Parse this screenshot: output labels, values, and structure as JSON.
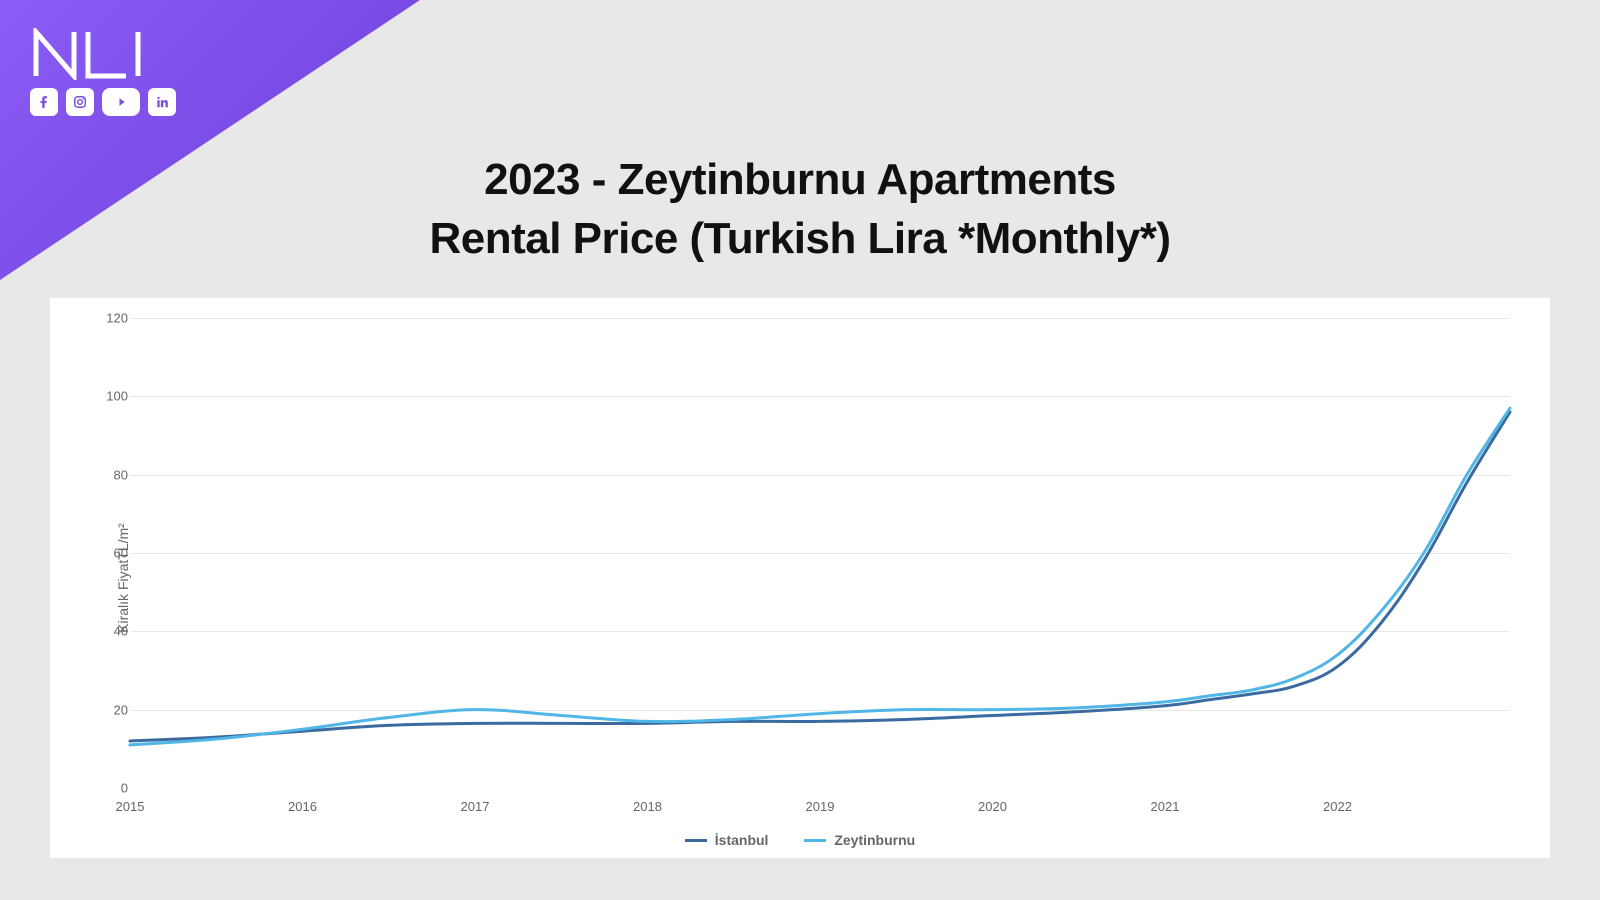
{
  "brand": {
    "logo_text": "NLI",
    "logo_color": "#ffffff",
    "corner_gradient_start": "#8b5cf6",
    "corner_gradient_end": "#6d3fd8",
    "social": [
      "facebook",
      "instagram",
      "youtube",
      "linkedin"
    ]
  },
  "title": {
    "line1": "2023 - Zeytinburnu Apartments",
    "line2": "Rental Price (Turkish Lira *Monthly*)",
    "fontsize": 44,
    "color": "#111111"
  },
  "chart": {
    "type": "line",
    "background_color": "#ffffff",
    "grid_color": "#e8e8e8",
    "axis_text_color": "#666666",
    "ylabel": "Kiralık FiyatTL/m²",
    "label_fontsize": 14,
    "ylim": [
      0,
      120
    ],
    "ytick_step": 20,
    "yticks": [
      0,
      20,
      40,
      60,
      80,
      100,
      120
    ],
    "xlim": [
      2015,
      2023
    ],
    "xticks": [
      2015,
      2016,
      2017,
      2018,
      2019,
      2020,
      2021,
      2022
    ],
    "line_width": 3,
    "series": [
      {
        "name": "İstanbul",
        "color": "#3b6aa0",
        "x": [
          2015,
          2015.5,
          2016,
          2016.5,
          2017,
          2017.5,
          2018,
          2018.5,
          2019,
          2019.5,
          2020,
          2020.5,
          2021,
          2021.25,
          2021.5,
          2021.75,
          2022,
          2022.25,
          2022.5,
          2022.75,
          2023
        ],
        "y": [
          12,
          13,
          14.5,
          16,
          16.5,
          16.5,
          16.5,
          17,
          17,
          17.5,
          18.5,
          19.5,
          21,
          22.5,
          24,
          26,
          31,
          42,
          58,
          78,
          96
        ]
      },
      {
        "name": "Zeytinburnu",
        "color": "#4fb6e6",
        "x": [
          2015,
          2015.5,
          2016,
          2016.5,
          2017,
          2017.5,
          2018,
          2018.5,
          2019,
          2019.5,
          2020,
          2020.5,
          2021,
          2021.25,
          2021.5,
          2021.75,
          2022,
          2022.25,
          2022.5,
          2022.75,
          2023
        ],
        "y": [
          11,
          12.5,
          15,
          18,
          20,
          18.5,
          17,
          17.5,
          19,
          20,
          20,
          20.5,
          22,
          23.5,
          25,
          28,
          34,
          45,
          60,
          80,
          97
        ]
      }
    ],
    "legend_position": "bottom"
  },
  "page_background": "#e8e8e8"
}
